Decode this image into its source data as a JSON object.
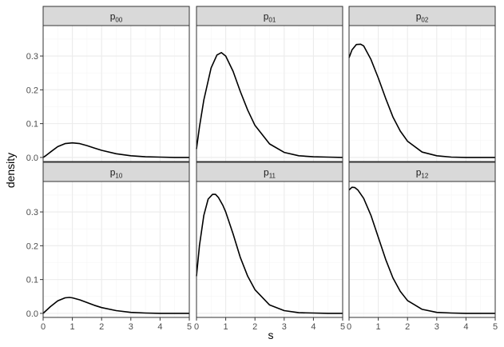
{
  "chart_data": {
    "type": "line",
    "xlabel": "s",
    "ylabel": "density",
    "xlim": [
      0,
      5
    ],
    "ylim": [
      -0.012,
      0.39
    ],
    "x_ticks": [
      0,
      1,
      2,
      3,
      4,
      5
    ],
    "y_ticks": [
      0.0,
      0.1,
      0.2,
      0.3
    ],
    "y_tick_labels": [
      "0.0",
      "0.1",
      "0.2",
      "0.3"
    ],
    "facet_layout": {
      "rows": 2,
      "cols": 3
    },
    "colors": {
      "line": "#000000",
      "strip_fill": "#d9d9d9",
      "border": "#333333",
      "grid_major": "#ebebeb",
      "grid_minor": "#f5f5f5"
    },
    "panels": [
      {
        "label_main": "p",
        "label_sub": "00",
        "x": [
          0,
          0.1,
          0.25,
          0.5,
          0.75,
          1.0,
          1.25,
          1.5,
          1.75,
          2.0,
          2.5,
          3.0,
          3.5,
          4.0,
          4.5,
          5.0
        ],
        "y": [
          0.0,
          0.006,
          0.016,
          0.032,
          0.041,
          0.043,
          0.041,
          0.035,
          0.028,
          0.021,
          0.011,
          0.005,
          0.002,
          0.001,
          0.0,
          0.0
        ]
      },
      {
        "label_main": "p",
        "label_sub": "01",
        "x": [
          0,
          0.1,
          0.25,
          0.5,
          0.7,
          0.85,
          1.0,
          1.25,
          1.5,
          1.75,
          2.0,
          2.5,
          3.0,
          3.5,
          4.0,
          4.5,
          5.0
        ],
        "y": [
          0.025,
          0.09,
          0.17,
          0.265,
          0.303,
          0.31,
          0.3,
          0.255,
          0.195,
          0.14,
          0.095,
          0.04,
          0.015,
          0.005,
          0.002,
          0.001,
          0.0
        ]
      },
      {
        "label_main": "p",
        "label_sub": "02",
        "x": [
          0,
          0.1,
          0.25,
          0.4,
          0.5,
          0.75,
          1.0,
          1.25,
          1.5,
          1.75,
          2.0,
          2.5,
          3.0,
          3.5,
          4.0,
          4.5,
          5.0
        ],
        "y": [
          0.295,
          0.318,
          0.334,
          0.335,
          0.33,
          0.29,
          0.235,
          0.175,
          0.12,
          0.078,
          0.048,
          0.016,
          0.005,
          0.001,
          0.0,
          0.0,
          0.0
        ]
      },
      {
        "label_main": "p",
        "label_sub": "10",
        "x": [
          0,
          0.1,
          0.25,
          0.5,
          0.75,
          0.9,
          1.0,
          1.25,
          1.5,
          1.75,
          2.0,
          2.5,
          3.0,
          3.5,
          4.0,
          4.5,
          5.0
        ],
        "y": [
          0.0,
          0.008,
          0.02,
          0.037,
          0.046,
          0.047,
          0.046,
          0.04,
          0.032,
          0.024,
          0.017,
          0.008,
          0.003,
          0.001,
          0.0,
          0.0,
          0.0
        ]
      },
      {
        "label_main": "p",
        "label_sub": "11",
        "x": [
          0,
          0.1,
          0.25,
          0.4,
          0.55,
          0.65,
          0.75,
          0.9,
          1.0,
          1.25,
          1.5,
          1.75,
          2.0,
          2.5,
          3.0,
          3.5,
          4.0,
          4.5,
          5.0
        ],
        "y": [
          0.11,
          0.2,
          0.29,
          0.338,
          0.352,
          0.352,
          0.343,
          0.32,
          0.3,
          0.235,
          0.165,
          0.11,
          0.07,
          0.025,
          0.008,
          0.002,
          0.001,
          0.0,
          0.0
        ]
      },
      {
        "label_main": "p",
        "label_sub": "12",
        "x": [
          0,
          0.1,
          0.2,
          0.3,
          0.5,
          0.75,
          1.0,
          1.25,
          1.5,
          1.75,
          2.0,
          2.5,
          3.0,
          3.5,
          4.0,
          4.5,
          5.0
        ],
        "y": [
          0.365,
          0.373,
          0.372,
          0.365,
          0.34,
          0.29,
          0.225,
          0.16,
          0.105,
          0.065,
          0.038,
          0.012,
          0.003,
          0.001,
          0.0,
          0.0,
          0.0
        ]
      }
    ]
  }
}
